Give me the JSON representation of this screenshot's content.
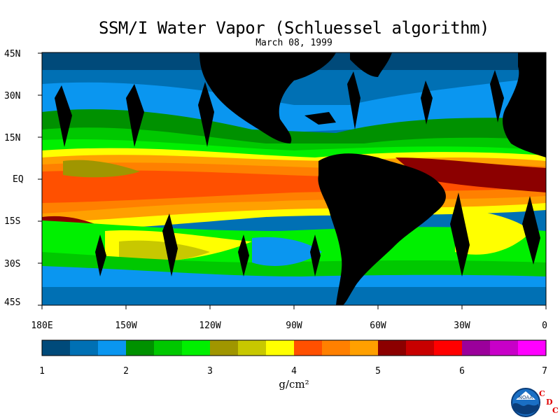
{
  "title": "SSM/I Water Vapor (Schluessel algorithm)",
  "subtitle": "March 08, 1999",
  "map": {
    "lat_labels": [
      "45N",
      "30N",
      "15N",
      "EQ",
      "15S",
      "30S",
      "45S"
    ],
    "lon_labels": [
      "180E",
      "150W",
      "120W",
      "90W",
      "60W",
      "30W",
      "0"
    ]
  },
  "colorbar": {
    "colors": [
      "#004a7a",
      "#0070b4",
      "#0a96f0",
      "#009100",
      "#00c800",
      "#00f000",
      "#a09600",
      "#c8c800",
      "#ffff00",
      "#ff5000",
      "#ff8000",
      "#ffa000",
      "#8c0000",
      "#c80000",
      "#ff0000",
      "#9b009b",
      "#c800c8",
      "#ff00ff"
    ],
    "tick_labels": [
      "1",
      "2",
      "3",
      "4",
      "5",
      "6",
      "7"
    ],
    "unit_label": "g/cm²"
  },
  "logo": {
    "icon": "noaa-logo-icon",
    "text": "NOAA",
    "letters": [
      "C",
      "D",
      "C"
    ]
  }
}
